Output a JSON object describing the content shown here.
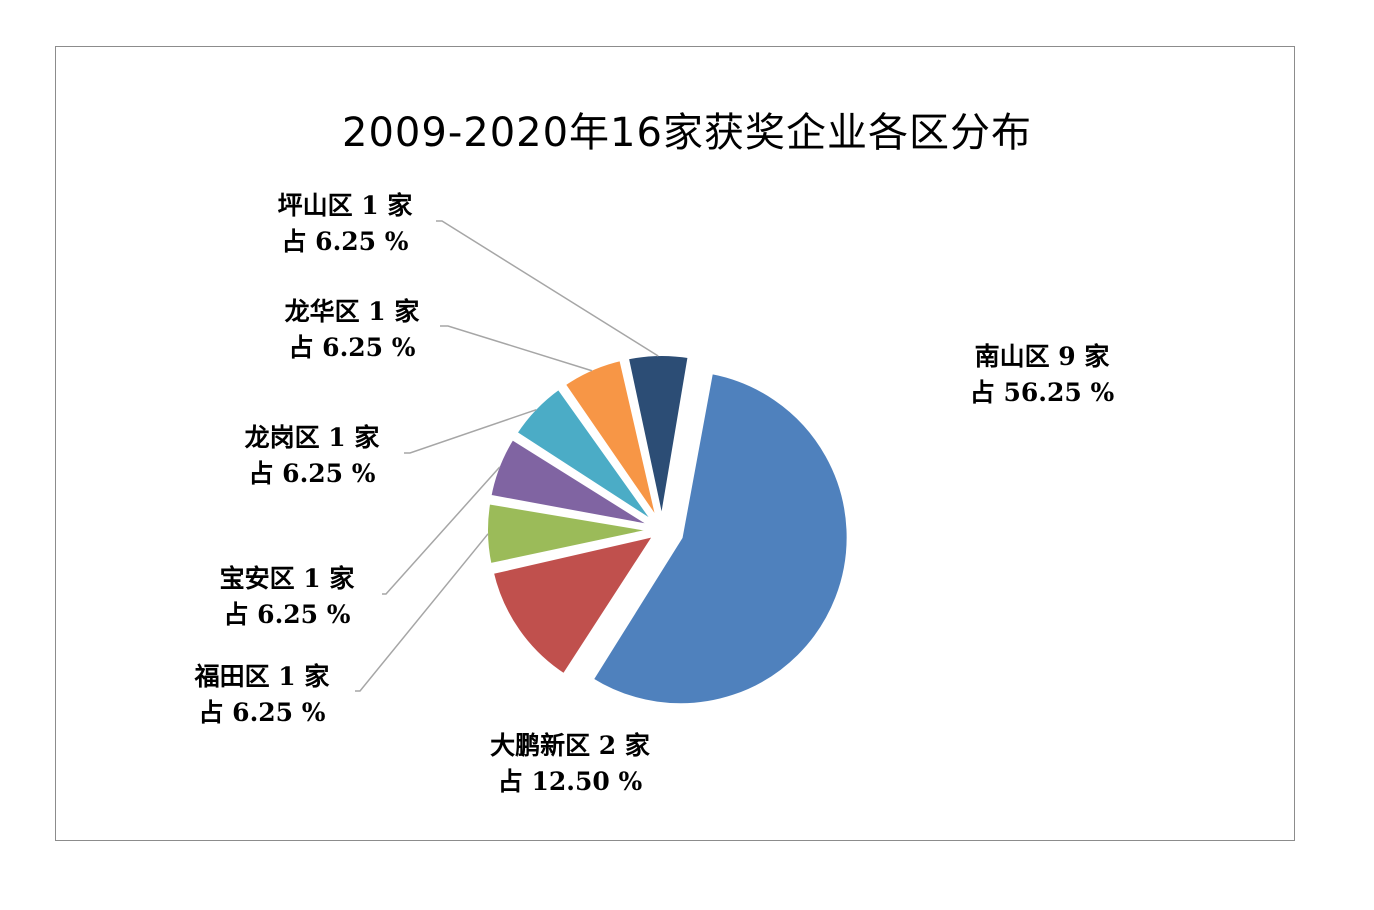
{
  "chart_data": {
    "type": "pie",
    "title": "2009-2020年16家获奖企业各区分布",
    "slices": [
      {
        "name": "南山区",
        "count": "9",
        "unit": "家",
        "value": 56.25,
        "prefix": "占",
        "percent_text": "56.25 %",
        "color": "#4f81bd",
        "explode": true
      },
      {
        "name": "大鹏新区",
        "count": "2",
        "unit": "家",
        "value": 12.5,
        "prefix": "占",
        "percent_text": "12.50 %",
        "color": "#c0504d"
      },
      {
        "name": "福田区",
        "count": "1",
        "unit": "家",
        "value": 6.25,
        "prefix": "占",
        "percent_text": "6.25 %",
        "color": "#9bbb59"
      },
      {
        "name": "宝安区",
        "count": "1",
        "unit": "家",
        "value": 6.25,
        "prefix": "占",
        "percent_text": "6.25 %",
        "color": "#8064a2"
      },
      {
        "name": "龙岗区",
        "count": "1",
        "unit": "家",
        "value": 6.25,
        "prefix": "占",
        "percent_text": "6.25 %",
        "color": "#4bacc6"
      },
      {
        "name": "龙华区",
        "count": "1",
        "unit": "家",
        "value": 6.25,
        "prefix": "占",
        "percent_text": "6.25 %",
        "color": "#f79646"
      },
      {
        "name": "坪山区",
        "count": "1",
        "unit": "家",
        "value": 6.25,
        "prefix": "占",
        "percent_text": "6.25 %",
        "color": "#2c4d75"
      }
    ]
  }
}
